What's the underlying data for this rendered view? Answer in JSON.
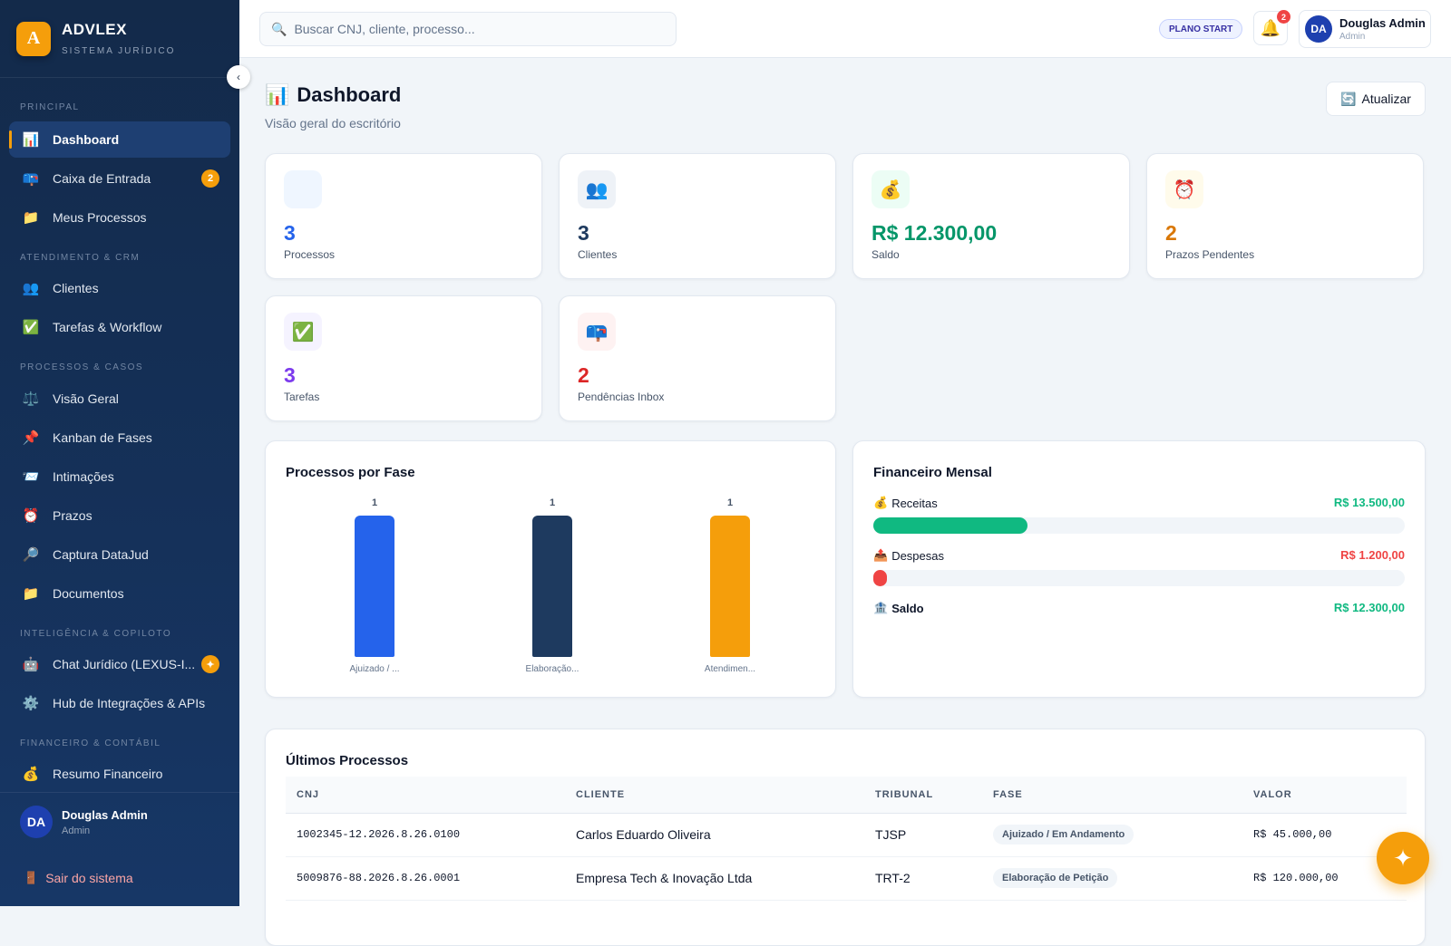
{
  "brand": {
    "name": "ADVLEX",
    "subtitle": "SISTEMA JURÍDICO",
    "logo_letter": "A"
  },
  "sidebar": {
    "sections": [
      "PRINCIPAL",
      "ATENDIMENTO & CRM",
      "PROCESSOS & CASOS",
      "INTELIGÊNCIA & COPILOTO",
      "FINANCEIRO & CONTÁBIL"
    ],
    "items": [
      {
        "label": "Dashboard",
        "icon": "📊"
      },
      {
        "label": "Caixa de Entrada",
        "icon": "📪",
        "badge": "2"
      },
      {
        "label": "Meus Processos",
        "icon": "📁"
      },
      {
        "label": "Clientes",
        "icon": "👥"
      },
      {
        "label": "Tarefas & Workflow",
        "icon": "✅"
      },
      {
        "label": "Visão Geral",
        "icon": "⚖️"
      },
      {
        "label": "Kanban de Fases",
        "icon": "📌"
      },
      {
        "label": "Intimações",
        "icon": "📨"
      },
      {
        "label": "Prazos",
        "icon": "⏰"
      },
      {
        "label": "Captura DataJud",
        "icon": "🔎"
      },
      {
        "label": "Documentos",
        "icon": "📁"
      },
      {
        "label": "Chat Jurídico (LEXUS-I...",
        "icon": "🤖",
        "badge": "✦"
      },
      {
        "label": "Hub de Integrações & APIs",
        "icon": "⚙️"
      },
      {
        "label": "Resumo Financeiro",
        "icon": "💰"
      }
    ],
    "user": {
      "initials": "DA",
      "name": "Douglas Admin",
      "role": "Admin"
    },
    "logout": "Sair do sistema",
    "collapse_icon": "‹"
  },
  "topbar": {
    "search_placeholder": "Buscar CNJ, cliente, processo...",
    "plan": "PLANO START",
    "notifications": "2",
    "user": {
      "initials": "DA",
      "name": "Douglas Admin",
      "role": "Admin"
    }
  },
  "page": {
    "title": "Dashboard",
    "title_icon": "📊",
    "subtitle": "Visão geral do escritório",
    "refresh_label": "Atualizar",
    "refresh_icon": "🔄"
  },
  "stats": [
    {
      "value": "3",
      "label": "Processos",
      "icon": "",
      "color": "#2563eb",
      "bg": "#eff6ff"
    },
    {
      "value": "3",
      "label": "Clientes",
      "icon": "👥",
      "color": "#1e3a5f",
      "bg": "#eef2f7"
    },
    {
      "value": "R$ 12.300,00",
      "label": "Saldo",
      "icon": "💰",
      "color": "#059669",
      "bg": "#ecfdf5"
    },
    {
      "value": "2",
      "label": "Prazos Pendentes",
      "icon": "⏰",
      "color": "#d97706",
      "bg": "#fffbeb"
    },
    {
      "value": "3",
      "label": "Tarefas",
      "icon": "✅",
      "color": "#7c3aed",
      "bg": "#f5f3ff"
    },
    {
      "value": "2",
      "label": "Pendências Inbox",
      "icon": "📪",
      "color": "#dc2626",
      "bg": "#fef2f2"
    }
  ],
  "phase_chart": {
    "title": "Processos por Fase",
    "bars": [
      {
        "label": "Ajuizado / ...",
        "value": 1,
        "color": "#2563eb"
      },
      {
        "label": "Elaboração...",
        "value": 1,
        "color": "#1e3a5f"
      },
      {
        "label": "Atendimen...",
        "value": 1,
        "color": "#f59e0b"
      }
    ]
  },
  "finance": {
    "title": "Financeiro Mensal",
    "rows": [
      {
        "label": "Receitas",
        "icon": "💰",
        "value": "R$ 13.500,00",
        "color": "#10b981",
        "fraction": 0.29
      },
      {
        "label": "Despesas",
        "icon": "📤",
        "value": "R$ 1.200,00",
        "color": "#ef4444",
        "fraction": 0.026
      },
      {
        "label": "Saldo",
        "icon": "🏦",
        "value": "R$ 12.300,00",
        "color": "#10b981"
      }
    ]
  },
  "processes": {
    "title": "Últimos Processos",
    "columns": [
      "CNJ",
      "CLIENTE",
      "TRIBUNAL",
      "FASE",
      "VALOR"
    ],
    "rows": [
      {
        "cnj": "1002345-12.2026.8.26.0100",
        "cliente": "Carlos Eduardo Oliveira",
        "tribunal": "TJSP",
        "fase": "Ajuizado / Em Andamento",
        "valor": "R$ 45.000,00"
      },
      {
        "cnj": "5009876-88.2026.8.26.0001",
        "cliente": "Empresa Tech & Inovação Ltda",
        "tribunal": "TRT-2",
        "fase": "Elaboração de Petição",
        "valor": "R$ 120.000,00"
      }
    ]
  },
  "fab_icon": "✦"
}
